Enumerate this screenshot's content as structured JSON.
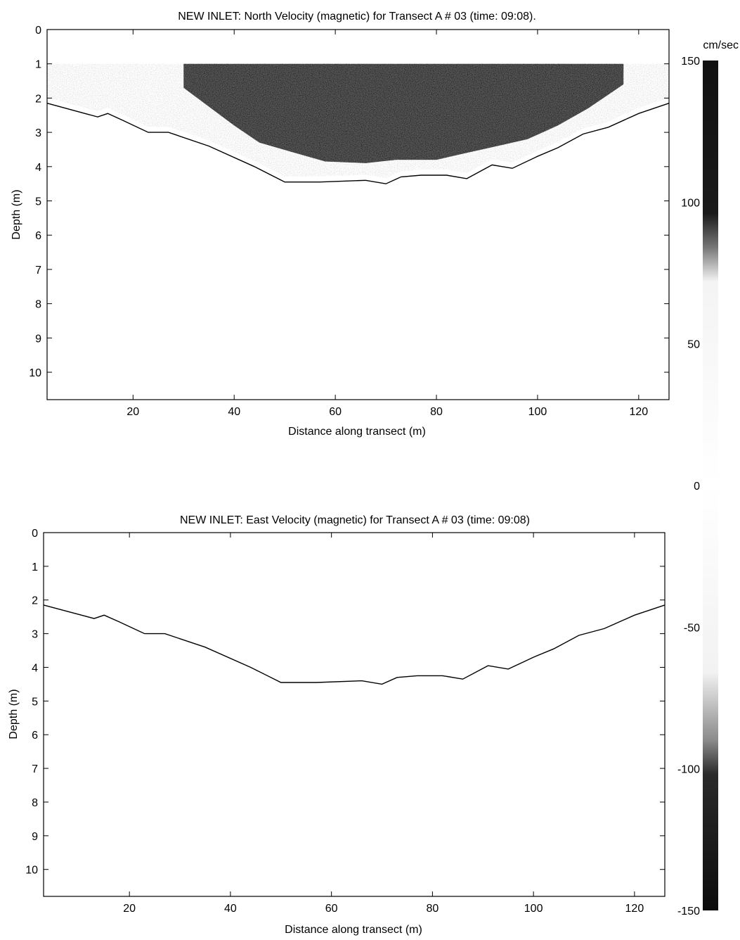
{
  "colorbar": {
    "unit": "cm/sec",
    "range": [
      -150,
      150
    ],
    "ticks": [
      150,
      100,
      50,
      0,
      -50,
      -100,
      -150
    ]
  },
  "chart_data": [
    {
      "type": "heatmap",
      "title": "NEW INLET: North Velocity (magnetic) for Transect A # 03 (time: 09:08).",
      "xlabel": "Distance along transect (m)",
      "ylabel": "Depth (m)",
      "xlim": [
        3,
        126
      ],
      "ylim": [
        0,
        10.8
      ],
      "xticks": [
        20,
        40,
        60,
        80,
        100,
        120
      ],
      "yticks": [
        0,
        1,
        2,
        3,
        4,
        5,
        6,
        7,
        8,
        9,
        10
      ],
      "bottom_profile": {
        "x": [
          3,
          13,
          15,
          18,
          23,
          27,
          35,
          44,
          50,
          57,
          66,
          70,
          73,
          77,
          82,
          86,
          91,
          95,
          100,
          104,
          109,
          114,
          120,
          126
        ],
        "depth": [
          2.15,
          2.55,
          2.45,
          2.65,
          3.0,
          3.0,
          3.4,
          4.0,
          4.45,
          4.45,
          4.4,
          4.5,
          4.3,
          4.25,
          4.25,
          4.35,
          3.95,
          4.05,
          3.7,
          3.45,
          3.05,
          2.85,
          2.45,
          2.15
        ]
      },
      "velocity_field": {
        "surface_depth": 1.0,
        "core_speed": "> 100 cm/sec",
        "core_profile": {
          "x": [
            30,
            40,
            45,
            52,
            58,
            66,
            72,
            80,
            86,
            92,
            98,
            104,
            110,
            117
          ],
          "depth": [
            1.7,
            2.8,
            3.3,
            3.6,
            3.85,
            3.9,
            3.8,
            3.8,
            3.6,
            3.4,
            3.2,
            2.8,
            2.3,
            1.6
          ]
        }
      }
    },
    {
      "type": "heatmap",
      "title": "NEW INLET: East Velocity (magnetic) for Transect A # 03 (time: 09:08)",
      "xlabel": "Distance along transect (m)",
      "ylabel": "Depth (m)",
      "xlim": [
        3,
        126
      ],
      "ylim": [
        0,
        10.8
      ],
      "xticks": [
        20,
        40,
        60,
        80,
        100,
        120
      ],
      "yticks": [
        0,
        1,
        2,
        3,
        4,
        5,
        6,
        7,
        8,
        9,
        10
      ],
      "bottom_profile": {
        "x": [
          3,
          13,
          15,
          18,
          23,
          27,
          35,
          44,
          50,
          57,
          66,
          70,
          73,
          77,
          82,
          86,
          91,
          95,
          100,
          104,
          109,
          114,
          120,
          126
        ],
        "depth": [
          2.15,
          2.55,
          2.45,
          2.65,
          3.0,
          3.0,
          3.4,
          4.0,
          4.45,
          4.45,
          4.4,
          4.5,
          4.3,
          4.25,
          4.25,
          4.35,
          3.95,
          4.05,
          3.7,
          3.45,
          3.05,
          2.85,
          2.45,
          2.15
        ]
      }
    }
  ]
}
